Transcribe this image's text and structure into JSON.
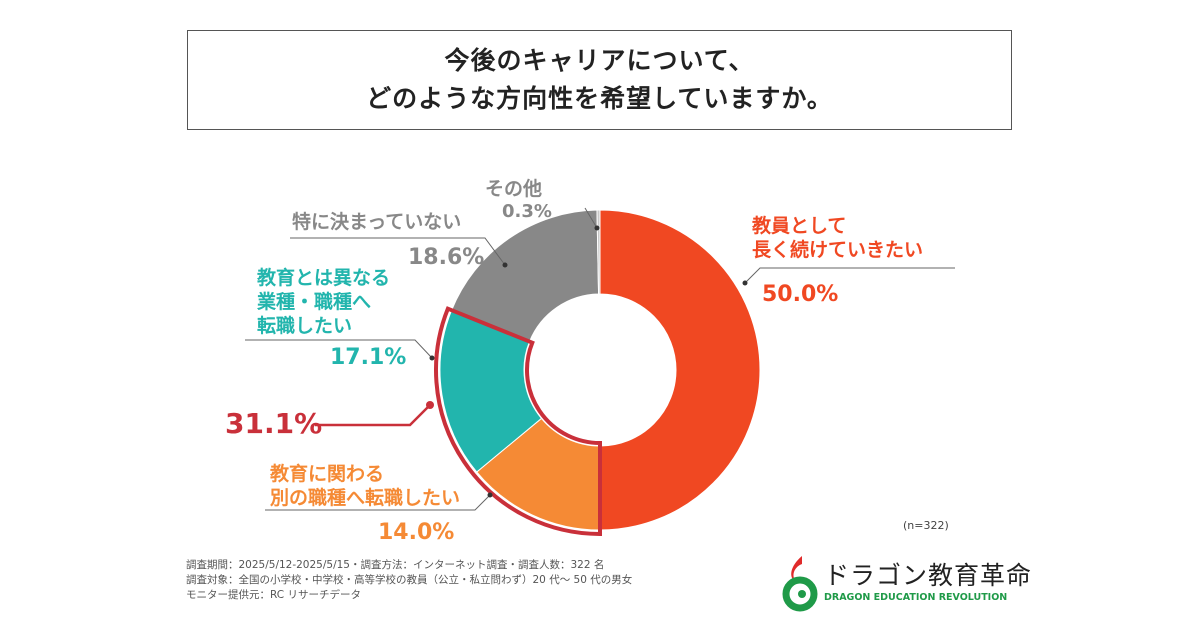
{
  "title": {
    "line1": "今後のキャリアについて、",
    "line2": "どのような方向性を希望していますか。"
  },
  "chart_data": {
    "type": "pie",
    "donut": true,
    "categories": [
      "教員として長く続けていきたい",
      "教育に関わる別の職種へ転職したい",
      "教育とは異なる業種・職種へ転職したい",
      "特に決まっていない",
      "その他"
    ],
    "values": [
      50.0,
      14.0,
      17.1,
      18.6,
      0.3
    ],
    "value_labels": [
      "50.0%",
      "14.0%",
      "17.1%",
      "18.6%",
      "0.3%"
    ],
    "colors": [
      "#f04822",
      "#f58a35",
      "#22b5ad",
      "#888888",
      "#c8c8c8"
    ],
    "label_lines": [
      [
        "教員として",
        "長く続けていきたい"
      ],
      [
        "教育に関わる",
        "別の職種へ転職したい"
      ],
      [
        "教育とは異なる",
        "業種・職種へ",
        "転職したい"
      ],
      [
        "特に決まっていない"
      ],
      [
        "その他"
      ]
    ],
    "highlight": {
      "label": "31.1%",
      "includes": [
        "教育に関わる別の職種へ転職したい",
        "教育とは異なる業種・職種へ転職したい"
      ],
      "color": "#c9303a"
    },
    "n_label": "(n=322)"
  },
  "notes": [
    "調査期間：2025/5/12-2025/5/15・調査方法：インターネット調査・調査人数：322 名",
    "調査対象：全国の小学校・中学校・高等学校の教員（公立・私立問わず）20 代〜 50 代の男女",
    "モニター提供元：RC リサーチデータ"
  ],
  "logo": {
    "jp": "ドラゴン教育革命",
    "en": "DRAGON EDUCATION REVOLUTION"
  }
}
